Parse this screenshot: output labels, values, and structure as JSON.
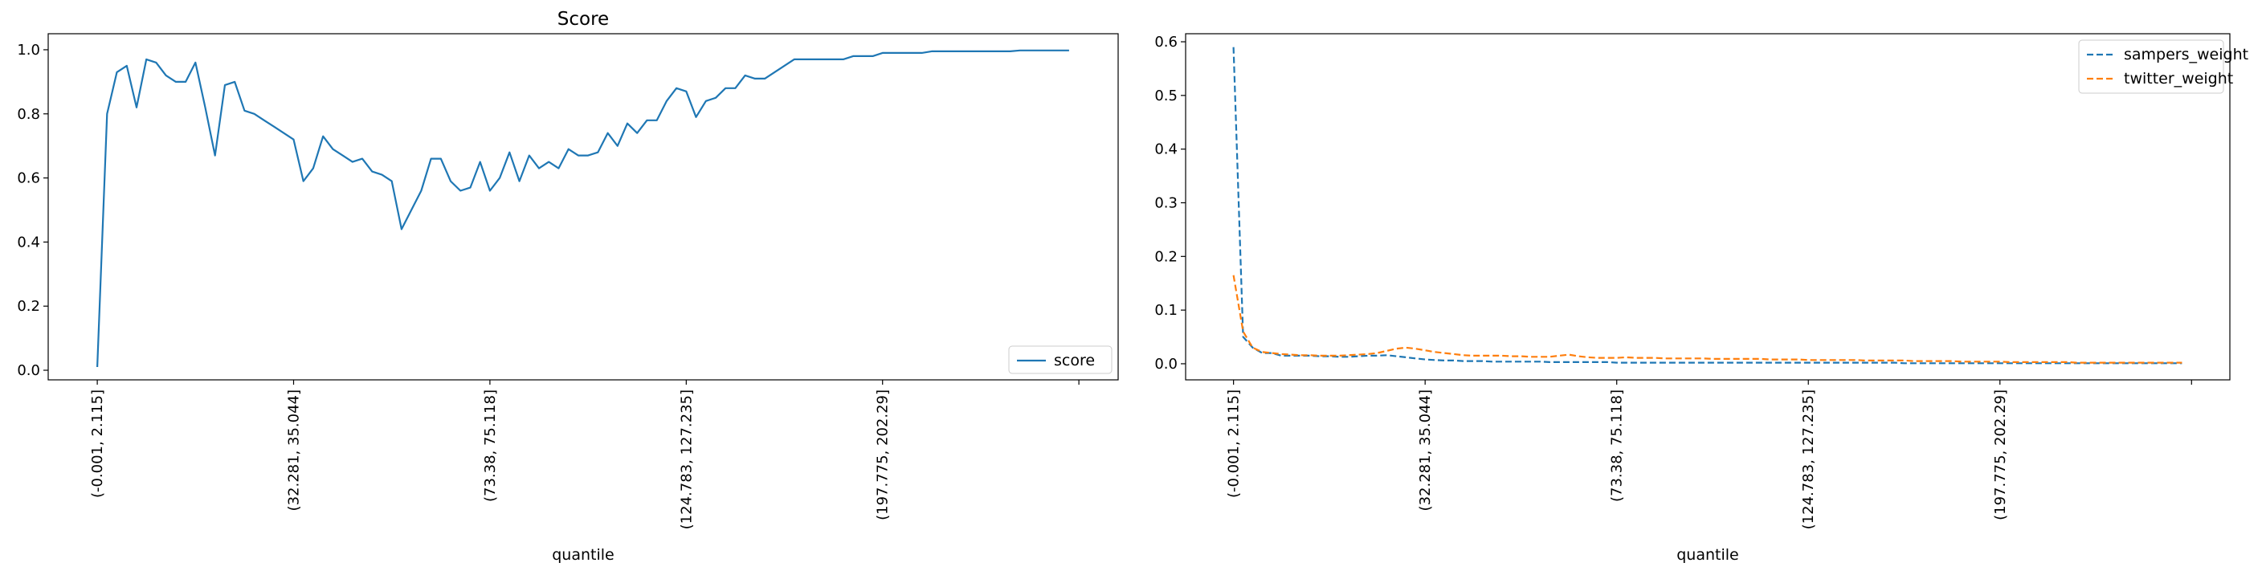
{
  "chart_data": [
    {
      "type": "line",
      "title": "Score",
      "xlabel": "quantile",
      "ylabel": "",
      "ylim": [
        -0.03,
        1.05
      ],
      "yticks": [
        0.0,
        0.2,
        0.4,
        0.6,
        0.8,
        1.0
      ],
      "ytick_labels": [
        "0.0",
        "0.2",
        "0.4",
        "0.6",
        "0.8",
        "1.0"
      ],
      "xtick_positions": [
        0,
        20,
        40,
        60,
        80,
        100
      ],
      "xtick_labels": [
        "(-0.001, 2.115]",
        "(32.281, 35.044]",
        "(73.38, 75.118]",
        "(124.783, 127.235]",
        "(197.775, 202.29]",
        ""
      ],
      "xlim": [
        -5,
        104
      ],
      "legend": "lower right",
      "series": [
        {
          "name": "score",
          "color": "#1f77b4",
          "linestyle": "solid",
          "values": [
            0.01,
            0.8,
            0.93,
            0.95,
            0.82,
            0.97,
            0.96,
            0.92,
            0.9,
            0.9,
            0.96,
            0.82,
            0.67,
            0.89,
            0.9,
            0.81,
            0.8,
            0.78,
            0.76,
            0.74,
            0.72,
            0.59,
            0.63,
            0.73,
            0.69,
            0.67,
            0.65,
            0.66,
            0.62,
            0.61,
            0.59,
            0.44,
            0.5,
            0.56,
            0.66,
            0.66,
            0.59,
            0.56,
            0.57,
            0.65,
            0.56,
            0.6,
            0.68,
            0.59,
            0.67,
            0.63,
            0.65,
            0.63,
            0.69,
            0.67,
            0.67,
            0.68,
            0.74,
            0.7,
            0.77,
            0.74,
            0.78,
            0.78,
            0.84,
            0.88,
            0.87,
            0.79,
            0.84,
            0.85,
            0.88,
            0.88,
            0.92,
            0.91,
            0.91,
            0.93,
            0.95,
            0.97,
            0.97,
            0.97,
            0.97,
            0.97,
            0.97,
            0.98,
            0.98,
            0.98,
            0.99,
            0.99,
            0.99,
            0.99,
            0.99,
            0.995,
            0.995,
            0.995,
            0.995,
            0.995,
            0.995,
            0.995,
            0.995,
            0.995,
            0.998,
            0.998,
            0.998,
            0.998,
            0.998,
            0.998
          ]
        }
      ]
    },
    {
      "type": "line",
      "title": "",
      "xlabel": "quantile",
      "ylabel": "",
      "ylim": [
        -0.03,
        0.615
      ],
      "yticks": [
        0.0,
        0.1,
        0.2,
        0.3,
        0.4,
        0.5,
        0.6
      ],
      "ytick_labels": [
        "0.0",
        "0.1",
        "0.2",
        "0.3",
        "0.4",
        "0.5",
        "0.6"
      ],
      "xtick_positions": [
        0,
        20,
        40,
        60,
        80,
        100
      ],
      "xtick_labels": [
        "(-0.001, 2.115]",
        "(32.281, 35.044]",
        "(73.38, 75.118]",
        "(124.783, 127.235]",
        "(197.775, 202.29]",
        ""
      ],
      "xlim": [
        -5,
        104
      ],
      "legend": "upper right",
      "series": [
        {
          "name": "sampers_weight",
          "color": "#1f77b4",
          "linestyle": "dashed",
          "values": [
            0.59,
            0.05,
            0.03,
            0.02,
            0.02,
            0.015,
            0.015,
            0.015,
            0.015,
            0.014,
            0.014,
            0.013,
            0.013,
            0.014,
            0.015,
            0.015,
            0.016,
            0.014,
            0.012,
            0.01,
            0.008,
            0.007,
            0.006,
            0.006,
            0.005,
            0.005,
            0.005,
            0.004,
            0.004,
            0.004,
            0.004,
            0.004,
            0.004,
            0.003,
            0.003,
            0.003,
            0.003,
            0.003,
            0.003,
            0.003,
            0.002,
            0.002,
            0.002,
            0.002,
            0.002,
            0.002,
            0.002,
            0.002,
            0.002,
            0.002,
            0.002,
            0.002,
            0.002,
            0.002,
            0.002,
            0.002,
            0.002,
            0.002,
            0.002,
            0.002,
            0.002,
            0.002,
            0.002,
            0.002,
            0.002,
            0.002,
            0.002,
            0.002,
            0.002,
            0.002,
            0.001,
            0.001,
            0.001,
            0.001,
            0.001,
            0.001,
            0.001,
            0.001,
            0.001,
            0.001,
            0.001,
            0.001,
            0.001,
            0.001,
            0.001,
            0.001,
            0.001,
            0.001,
            0.001,
            0.001,
            0.001,
            0.001,
            0.001,
            0.001,
            0.001,
            0.001,
            0.001,
            0.001,
            0.001,
            0.001
          ]
        },
        {
          "name": "twitter_weight",
          "color": "#ff7f0e",
          "linestyle": "dashed",
          "values": [
            0.165,
            0.06,
            0.03,
            0.022,
            0.02,
            0.018,
            0.017,
            0.016,
            0.016,
            0.015,
            0.015,
            0.015,
            0.016,
            0.017,
            0.018,
            0.02,
            0.024,
            0.028,
            0.03,
            0.028,
            0.025,
            0.022,
            0.02,
            0.018,
            0.016,
            0.015,
            0.015,
            0.015,
            0.015,
            0.014,
            0.014,
            0.013,
            0.013,
            0.013,
            0.015,
            0.017,
            0.014,
            0.012,
            0.011,
            0.011,
            0.011,
            0.012,
            0.011,
            0.011,
            0.011,
            0.01,
            0.01,
            0.01,
            0.01,
            0.01,
            0.009,
            0.009,
            0.009,
            0.009,
            0.009,
            0.009,
            0.008,
            0.008,
            0.008,
            0.008,
            0.007,
            0.007,
            0.007,
            0.007,
            0.007,
            0.007,
            0.006,
            0.006,
            0.006,
            0.006,
            0.006,
            0.005,
            0.005,
            0.005,
            0.005,
            0.005,
            0.004,
            0.004,
            0.004,
            0.004,
            0.004,
            0.003,
            0.003,
            0.003,
            0.003,
            0.003,
            0.003,
            0.003,
            0.002,
            0.002,
            0.002,
            0.002,
            0.002,
            0.002,
            0.002,
            0.002,
            0.002,
            0.002,
            0.002,
            0.002
          ]
        }
      ]
    }
  ]
}
